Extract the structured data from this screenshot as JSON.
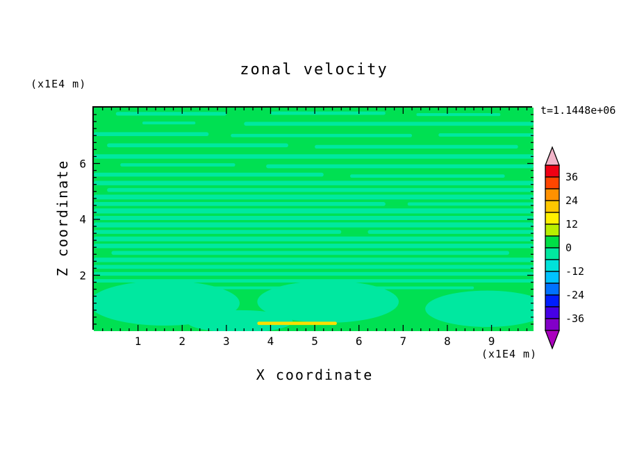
{
  "chart_data": {
    "type": "heatmap",
    "subtype": "filled-contour",
    "title": "zonal velocity",
    "time_annotation": "t=1.1448e+06",
    "xlabel": "X coordinate",
    "ylabel": "Z coordinate",
    "x_unit": "(x1E4 m)",
    "y_unit": "(x1E4 m)",
    "xlim": [
      0,
      9.95
    ],
    "ylim": [
      0,
      8.0
    ],
    "x_ticks": [
      1,
      2,
      3,
      4,
      5,
      6,
      7,
      8,
      9
    ],
    "y_ticks": [
      2,
      4,
      6
    ],
    "x_minor_step": 0.2,
    "y_minor_step": 0.25,
    "grid": false,
    "legend_position": "right-colorbar",
    "colorbar": {
      "tick_labels": [
        36,
        24,
        12,
        0,
        -12,
        -24,
        -36
      ],
      "level_range": [
        -42,
        42
      ],
      "level_step": 6,
      "colors_top_to_bottom": [
        "#f00014",
        "#ff4600",
        "#ff9100",
        "#ffc800",
        "#fff000",
        "#b9ee00",
        "#00df46",
        "#00e8a0",
        "#00e2da",
        "#00c3ff",
        "#0072ff",
        "#001eff",
        "#4600e6",
        "#8200c8"
      ],
      "over_arrow_color": "#f2b4c8",
      "under_arrow_color": "#aa00be"
    },
    "field": {
      "description": "Zonal velocity field is nearly uniform, almost entirely inside the -6..+6 band: base color is the 0..6 green band, with thin horizontal streaks of the -6..0 band, large smooth -6..0 patches near the bottom boundary, and one thin 12..18 yellow sliver near the bottom around x=4-5.5",
      "base_band": [
        0,
        6
      ],
      "streak_band": [
        -6,
        0
      ],
      "base_color": "#00e052",
      "streak_color": "#00e8a0",
      "highlight_color": "#ffdf00",
      "streaks": [
        {
          "x0": 0.5,
          "x1": 3.0,
          "y": 7.78,
          "h": 0.13
        },
        {
          "x0": 4.0,
          "x1": 6.6,
          "y": 7.8,
          "h": 0.12
        },
        {
          "x0": 7.3,
          "x1": 9.2,
          "y": 7.75,
          "h": 0.1
        },
        {
          "x0": 1.1,
          "x1": 2.3,
          "y": 7.45,
          "h": 0.1
        },
        {
          "x0": 3.4,
          "x1": 9.95,
          "y": 7.42,
          "h": 0.14
        },
        {
          "x0": 0.0,
          "x1": 2.6,
          "y": 7.05,
          "h": 0.14
        },
        {
          "x0": 3.1,
          "x1": 7.2,
          "y": 7.0,
          "h": 0.12
        },
        {
          "x0": 7.8,
          "x1": 9.95,
          "y": 7.02,
          "h": 0.12
        },
        {
          "x0": 0.3,
          "x1": 4.4,
          "y": 6.65,
          "h": 0.14
        },
        {
          "x0": 5.0,
          "x1": 9.6,
          "y": 6.6,
          "h": 0.13
        },
        {
          "x0": 0.0,
          "x1": 9.95,
          "y": 6.25,
          "h": 0.16
        },
        {
          "x0": 0.6,
          "x1": 3.2,
          "y": 5.95,
          "h": 0.12
        },
        {
          "x0": 3.9,
          "x1": 9.95,
          "y": 5.9,
          "h": 0.14
        },
        {
          "x0": 0.0,
          "x1": 5.2,
          "y": 5.6,
          "h": 0.14
        },
        {
          "x0": 5.8,
          "x1": 9.3,
          "y": 5.55,
          "h": 0.12
        },
        {
          "x0": 0.0,
          "x1": 9.95,
          "y": 5.3,
          "h": 0.16
        },
        {
          "x0": 0.3,
          "x1": 9.95,
          "y": 5.05,
          "h": 0.14
        },
        {
          "x0": 0.0,
          "x1": 9.95,
          "y": 4.8,
          "h": 0.17
        },
        {
          "x0": 0.0,
          "x1": 6.6,
          "y": 4.55,
          "h": 0.14
        },
        {
          "x0": 7.1,
          "x1": 9.95,
          "y": 4.55,
          "h": 0.12
        },
        {
          "x0": 0.0,
          "x1": 9.95,
          "y": 4.3,
          "h": 0.18
        },
        {
          "x0": 0.0,
          "x1": 9.95,
          "y": 4.05,
          "h": 0.15
        },
        {
          "x0": 0.0,
          "x1": 9.95,
          "y": 3.8,
          "h": 0.18
        },
        {
          "x0": 0.0,
          "x1": 5.6,
          "y": 3.55,
          "h": 0.14
        },
        {
          "x0": 6.2,
          "x1": 9.95,
          "y": 3.55,
          "h": 0.14
        },
        {
          "x0": 0.0,
          "x1": 9.95,
          "y": 3.3,
          "h": 0.17
        },
        {
          "x0": 0.0,
          "x1": 9.95,
          "y": 3.05,
          "h": 0.16
        },
        {
          "x0": 0.4,
          "x1": 9.4,
          "y": 2.8,
          "h": 0.14
        },
        {
          "x0": 0.0,
          "x1": 9.95,
          "y": 2.55,
          "h": 0.16
        },
        {
          "x0": 0.0,
          "x1": 9.95,
          "y": 2.3,
          "h": 0.14
        },
        {
          "x0": 0.0,
          "x1": 9.95,
          "y": 2.05,
          "h": 0.13
        },
        {
          "x0": 0.0,
          "x1": 9.95,
          "y": 1.8,
          "h": 0.12
        },
        {
          "x0": 1.2,
          "x1": 8.6,
          "y": 1.55,
          "h": 0.1
        }
      ],
      "blobs": [
        {
          "cx": 1.6,
          "cy": 1.0,
          "rx": 1.7,
          "ry": 0.8
        },
        {
          "cx": 5.3,
          "cy": 1.05,
          "rx": 1.6,
          "ry": 0.75
        },
        {
          "cx": 8.9,
          "cy": 0.8,
          "rx": 1.4,
          "ry": 0.65
        },
        {
          "cx": 3.3,
          "cy": 0.35,
          "rx": 1.2,
          "ry": 0.4
        }
      ],
      "highlight_streaks": [
        {
          "x0": 3.7,
          "x1": 5.5,
          "y": 0.28,
          "h": 0.12
        }
      ]
    }
  }
}
